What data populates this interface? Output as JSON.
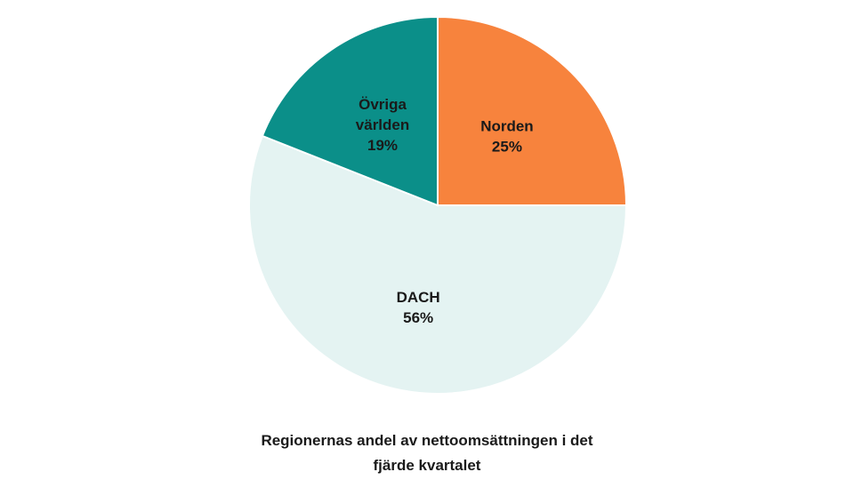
{
  "chart_data": {
    "type": "pie",
    "title_lines": [
      "Regionernas andel av nettoomsättningen i det",
      "fjärde kvartalet"
    ],
    "slices": [
      {
        "name_lines": [
          "Norden"
        ],
        "value": 25,
        "value_label": "25%",
        "color": "#f7833d"
      },
      {
        "name_lines": [
          "DACH"
        ],
        "value": 56,
        "value_label": "56%",
        "color": "#e4f3f2"
      },
      {
        "name_lines": [
          "Övriga",
          "världen"
        ],
        "value": 19,
        "value_label": "19%",
        "color": "#0b8f89"
      }
    ],
    "start_direction": "top",
    "order": "clockwise",
    "legend": "none"
  }
}
